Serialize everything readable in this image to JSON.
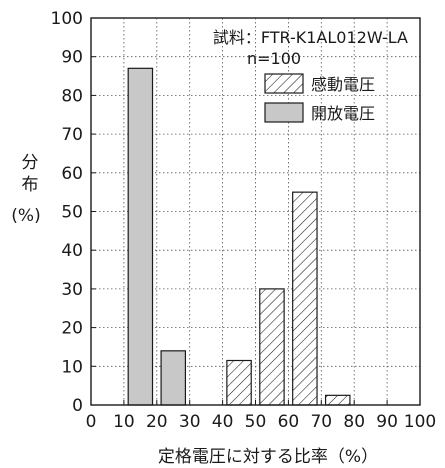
{
  "chart_data": {
    "type": "bar",
    "title": "",
    "annotation_lines": [
      "試料：FTR-K1AL012W-LA",
      "n=100"
    ],
    "ylabel_lines": [
      "分",
      "布",
      "(%)"
    ],
    "xlabel": "定格電圧に対する比率（%）",
    "xlim": [
      0,
      100
    ],
    "ylim": [
      0,
      100
    ],
    "x_ticks": [
      0,
      10,
      20,
      30,
      40,
      50,
      60,
      70,
      80,
      90,
      100
    ],
    "y_ticks": [
      0,
      10,
      20,
      30,
      40,
      50,
      60,
      70,
      80,
      90,
      100
    ],
    "grid": "dotted",
    "legend_position": "top-right",
    "bin_width": 10,
    "series": [
      {
        "name": "感動電圧",
        "style": "hatched",
        "bins": [
          {
            "from": 40,
            "to": 50,
            "value": 11.5
          },
          {
            "from": 50,
            "to": 60,
            "value": 30
          },
          {
            "from": 60,
            "to": 70,
            "value": 55
          },
          {
            "from": 70,
            "to": 80,
            "value": 2.5
          }
        ]
      },
      {
        "name": "開放電圧",
        "style": "gray",
        "bins": [
          {
            "from": 10,
            "to": 20,
            "value": 87
          },
          {
            "from": 20,
            "to": 30,
            "value": 14
          }
        ]
      }
    ],
    "colors": {
      "gray_fill": "#c8c8c8",
      "stroke": "#1a1a1a",
      "grid": "#555555"
    }
  }
}
